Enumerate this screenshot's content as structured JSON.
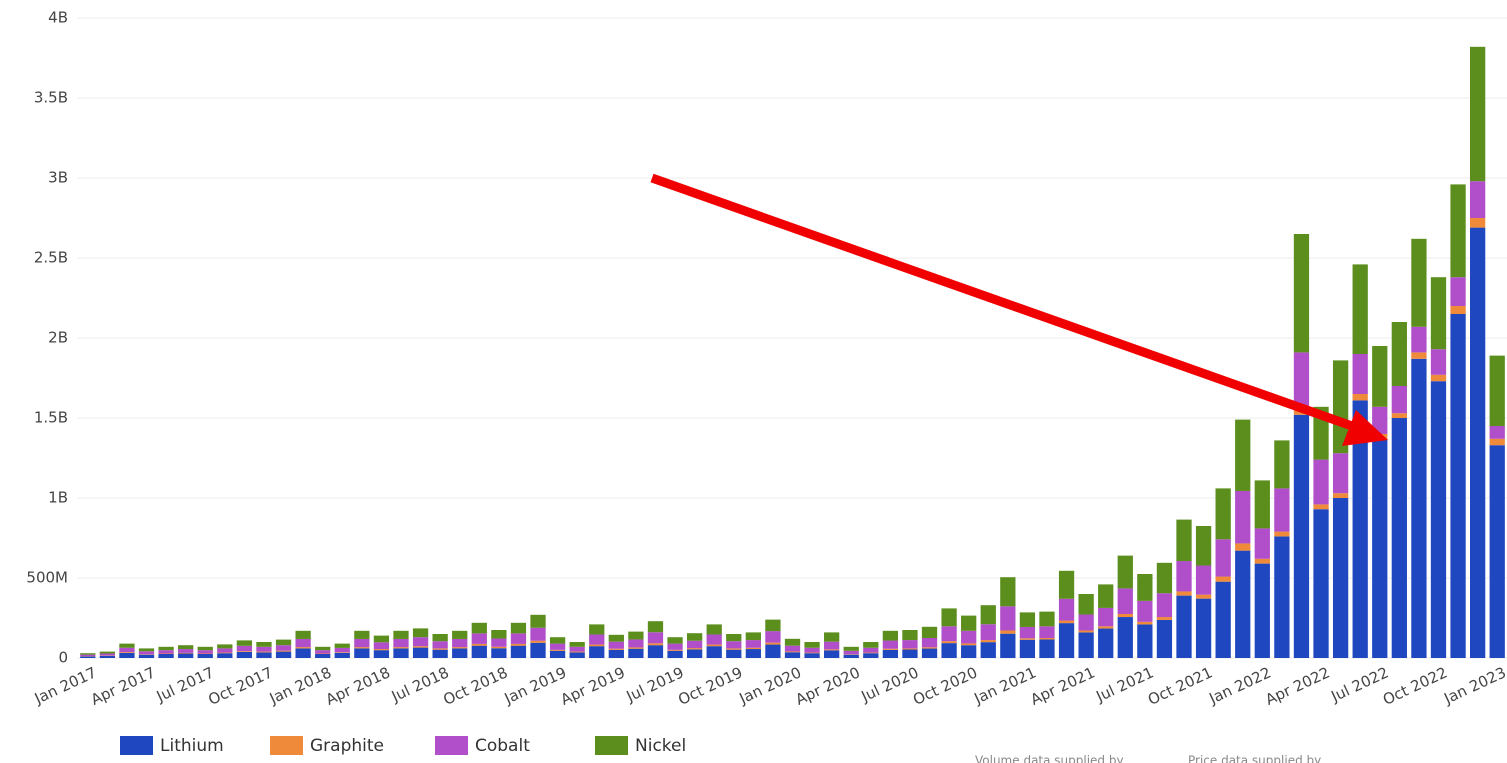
{
  "chart_data": {
    "type": "stacked-bar",
    "categories": [
      "Jan 2017",
      null,
      null,
      "Apr 2017",
      null,
      null,
      "Jul 2017",
      null,
      null,
      "Oct 2017",
      null,
      null,
      "Jan 2018",
      null,
      null,
      "Apr 2018",
      null,
      null,
      "Jul 2018",
      null,
      null,
      "Oct 2018",
      null,
      null,
      "Jan 2019",
      null,
      null,
      "Apr 2019",
      null,
      null,
      "Jul 2019",
      null,
      null,
      "Oct 2019",
      null,
      null,
      "Jan 2020",
      null,
      null,
      "Apr 2020",
      null,
      null,
      "Jul 2020",
      null,
      null,
      "Oct 2020",
      null,
      null,
      "Jan 2021",
      null,
      null,
      "Apr 2021",
      null,
      null,
      "Jul 2021",
      null,
      null,
      "Oct 2021",
      null,
      null,
      "Jan 2022",
      null,
      null,
      "Apr 2022",
      null,
      null,
      "Jul 2022",
      null,
      null,
      "Oct 2022",
      null,
      null,
      "Jan 2023"
    ],
    "series": [
      {
        "name": "Lithium",
        "color": "#1f47c0",
        "values": [
          10,
          14,
          32,
          21,
          25,
          28,
          25,
          30,
          38,
          35,
          40,
          60,
          25,
          32,
          60,
          49,
          60,
          65,
          52,
          60,
          77,
          61,
          77,
          95,
          45,
          35,
          74,
          51,
          58,
          80,
          45,
          54,
          74,
          52,
          56,
          84,
          36,
          30,
          48,
          21,
          30,
          51,
          53,
          59,
          93,
          80,
          99,
          152,
          114,
          116,
          218,
          160,
          184,
          256,
          210,
          238,
          390,
          371,
          477,
          671,
          590,
          760,
          1520,
          930,
          1000,
          1610,
          1370,
          1500,
          1870,
          1730,
          2150,
          2690,
          1330
        ]
      },
      {
        "name": "Graphite",
        "color": "#ee8a3a",
        "values": [
          2,
          2,
          5,
          3,
          3,
          4,
          3,
          4,
          5,
          5,
          6,
          8,
          3,
          4,
          8,
          7,
          8,
          9,
          8,
          8,
          11,
          9,
          11,
          13,
          6,
          5,
          10,
          7,
          8,
          12,
          6,
          8,
          10,
          8,
          8,
          12,
          5,
          4,
          6,
          3,
          4,
          7,
          7,
          8,
          12,
          11,
          13,
          20,
          9,
          9,
          16,
          12,
          14,
          19,
          16,
          18,
          26,
          25,
          32,
          45,
          30,
          30,
          40,
          30,
          30,
          40,
          30,
          30,
          40,
          40,
          50,
          60,
          40
        ]
      },
      {
        "name": "Cobalt",
        "color": "#b04fc9",
        "values": [
          9,
          12,
          27,
          18,
          21,
          24,
          21,
          26,
          33,
          30,
          34,
          51,
          21,
          27,
          51,
          42,
          51,
          56,
          45,
          51,
          66,
          52,
          66,
          81,
          39,
          30,
          63,
          44,
          50,
          69,
          39,
          46,
          63,
          45,
          48,
          72,
          36,
          30,
          48,
          21,
          30,
          51,
          52,
          58,
          93,
          79,
          99,
          151,
          71,
          73,
          136,
          100,
          115,
          160,
          131,
          149,
          190,
          182,
          233,
          328,
          190,
          270,
          350,
          280,
          250,
          250,
          170,
          170,
          160,
          160,
          180,
          230,
          80
        ]
      },
      {
        "name": "Nickel",
        "color": "#5c8e1e",
        "values": [
          9,
          12,
          26,
          18,
          21,
          24,
          21,
          25,
          34,
          30,
          35,
          51,
          21,
          27,
          51,
          42,
          51,
          55,
          45,
          51,
          66,
          53,
          66,
          81,
          40,
          30,
          63,
          43,
          49,
          69,
          40,
          47,
          63,
          45,
          48,
          72,
          43,
          36,
          58,
          25,
          36,
          61,
          63,
          70,
          112,
          95,
          119,
          182,
          91,
          92,
          175,
          128,
          147,
          205,
          168,
          190,
          259,
          247,
          318,
          446,
          300,
          300,
          740,
          330,
          580,
          560,
          380,
          400,
          550,
          450,
          580,
          840,
          440
        ]
      }
    ],
    "ylim": [
      0,
      4000
    ],
    "yticks": [
      0,
      {
        "value": 500,
        "label": "500M"
      },
      {
        "value": 1000,
        "label": "1B"
      },
      {
        "value": 1500,
        "label": "1.5B"
      },
      {
        "value": 2000,
        "label": "2B"
      },
      {
        "value": 2500,
        "label": "2.5B"
      },
      {
        "value": 3000,
        "label": "3B"
      },
      {
        "value": 3500,
        "label": "3.5B"
      },
      {
        "value": 4000,
        "label": "4B"
      }
    ],
    "grid": true,
    "legend": "bottom-left",
    "footnotes": [
      "Volume data supplied by",
      "Price data supplied by"
    ]
  }
}
